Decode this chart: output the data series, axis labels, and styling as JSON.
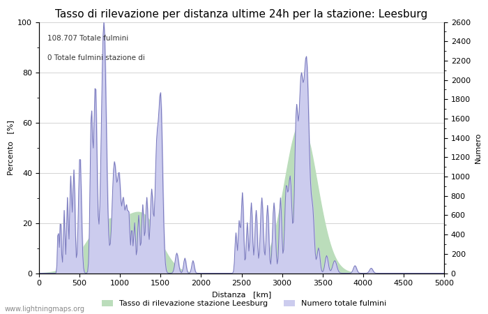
{
  "title": "Tasso di rilevazione per distanza ultime 24h per la stazione: Leesburg",
  "xlabel": "Distanza   [km]",
  "ylabel_left": "Percento   [%]",
  "ylabel_right": "Numero",
  "annotation_line1": "108.707 Totale fulmini",
  "annotation_line2": "0 Totale fulmini stazione di",
  "xlim": [
    0,
    5000
  ],
  "ylim_left": [
    0,
    100
  ],
  "ylim_right": [
    0,
    2600
  ],
  "xticks": [
    0,
    500,
    1000,
    1500,
    2000,
    2500,
    3000,
    3500,
    4000,
    4500,
    5000
  ],
  "yticks_left": [
    0,
    20,
    40,
    60,
    80,
    100
  ],
  "yticks_right": [
    0,
    200,
    400,
    600,
    800,
    1000,
    1200,
    1400,
    1600,
    1800,
    2000,
    2200,
    2400,
    2600
  ],
  "legend_green_label": "Tasso di rilevazione stazione Leesburg",
  "legend_blue_label": "Numero totale fulmini",
  "line_color": "#7777bb",
  "fill_blue_color": "#ccccee",
  "fill_green_color": "#bbddbb",
  "background_color": "#ffffff",
  "grid_color": "#cccccc",
  "watermark": "www.lightningmaps.org",
  "title_fontsize": 11,
  "label_fontsize": 8,
  "tick_fontsize": 8
}
